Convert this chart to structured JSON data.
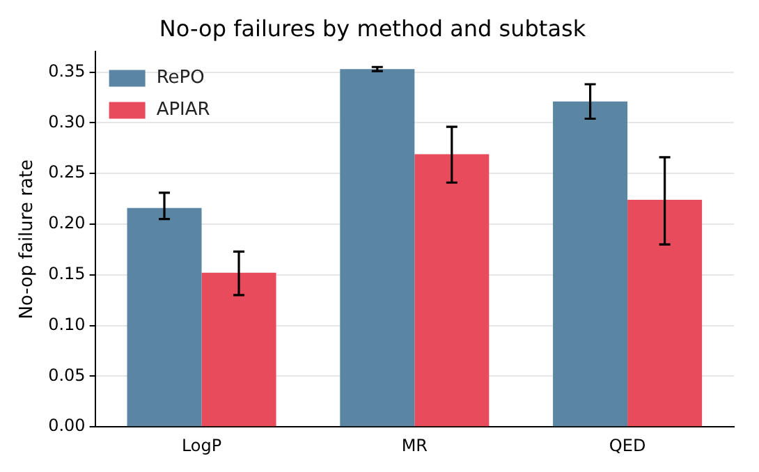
{
  "chart_data": {
    "type": "bar",
    "title": "No-op failures by method and subtask",
    "ylabel": "No-op failure rate",
    "categories": [
      "LogP",
      "MR",
      "QED"
    ],
    "series": [
      {
        "name": "RePO",
        "color": "#5a86a4",
        "values": [
          0.216,
          0.353,
          0.321
        ],
        "errors": [
          [
            0.205,
            0.231
          ],
          [
            0.351,
            0.355
          ],
          [
            0.304,
            0.338
          ]
        ]
      },
      {
        "name": "APIAR",
        "color": "#e84b5c",
        "values": [
          0.152,
          0.269,
          0.224
        ],
        "errors": [
          [
            0.13,
            0.173
          ],
          [
            0.241,
            0.296
          ],
          [
            0.18,
            0.266
          ]
        ]
      }
    ],
    "ylim": [
      0,
      0.37
    ],
    "yticks": [
      {
        "value": 0,
        "label": "0.00"
      },
      {
        "value": 0.05,
        "label": "0.05"
      },
      {
        "value": 0.1,
        "label": "0.10"
      },
      {
        "value": 0.15,
        "label": "0.15"
      },
      {
        "value": 0.2,
        "label": "0.20"
      },
      {
        "value": 0.25,
        "label": "0.25"
      },
      {
        "value": 0.3,
        "label": "0.30"
      },
      {
        "value": 0.35,
        "label": "0.35"
      }
    ],
    "grid": "y",
    "legend": "top left"
  }
}
